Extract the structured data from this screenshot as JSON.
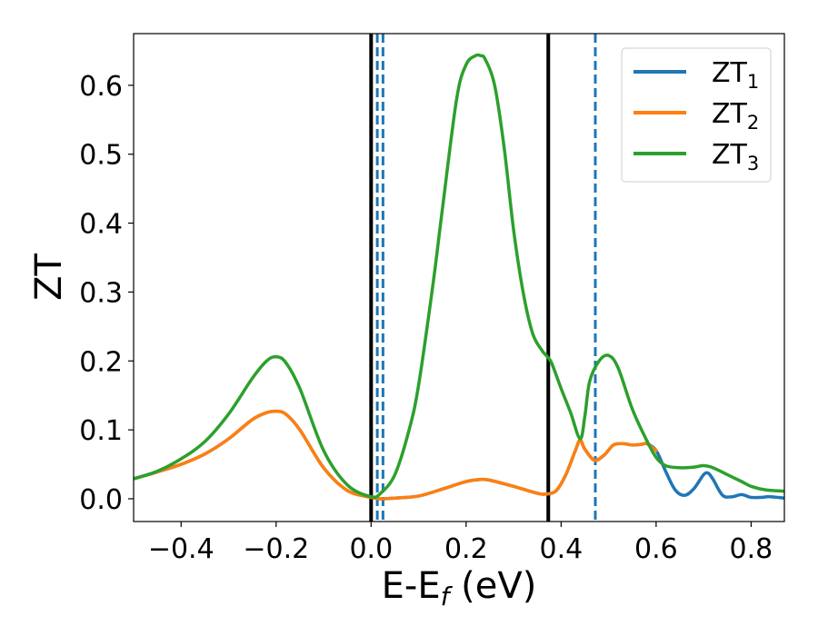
{
  "chart_data": {
    "type": "line",
    "xlabel_main": "E-E",
    "xlabel_sub": "f",
    "xlabel_tail": " (eV)",
    "ylabel": "ZT",
    "xlim": [
      -0.5,
      0.87
    ],
    "ylim": [
      -0.033,
      0.675
    ],
    "x_ticks": [
      -0.4,
      -0.2,
      0.0,
      0.2,
      0.4,
      0.6,
      0.8
    ],
    "x_tick_labels": [
      "−0.4",
      "−0.2",
      "0.0",
      "0.2",
      "0.4",
      "0.6",
      "0.8"
    ],
    "y_ticks": [
      0.0,
      0.1,
      0.2,
      0.3,
      0.4,
      0.5,
      0.6
    ],
    "y_tick_labels": [
      "0.0",
      "0.1",
      "0.2",
      "0.3",
      "0.4",
      "0.5",
      "0.6"
    ],
    "grid": false,
    "legend_position": "top-right",
    "vlines": [
      {
        "x": 0.0,
        "style": "solid",
        "color": "#000000"
      },
      {
        "x": 0.373,
        "style": "solid",
        "color": "#000000"
      },
      {
        "x": 0.013,
        "style": "dashed",
        "color": "#1f77b4"
      },
      {
        "x": 0.025,
        "style": "dashed",
        "color": "#1f77b4"
      },
      {
        "x": 0.472,
        "style": "dashed",
        "color": "#1f77b4"
      }
    ],
    "series": [
      {
        "name_main": "ZT",
        "name_sub": "1",
        "color": "#1f77b4",
        "x": [
          -0.5,
          -0.45,
          -0.4,
          -0.35,
          -0.3,
          -0.25,
          -0.22,
          -0.2,
          -0.18,
          -0.15,
          -0.1,
          -0.05,
          0.0,
          0.02,
          0.05,
          0.1,
          0.15,
          0.2,
          0.23,
          0.25,
          0.3,
          0.35,
          0.37,
          0.39,
          0.41,
          0.43,
          0.44,
          0.45,
          0.47,
          0.49,
          0.51,
          0.53,
          0.55,
          0.57,
          0.58,
          0.6,
          0.62,
          0.64,
          0.66,
          0.68,
          0.7,
          0.71,
          0.72,
          0.74,
          0.76,
          0.78,
          0.8,
          0.82,
          0.84,
          0.87
        ],
        "y": [
          0.029,
          0.039,
          0.05,
          0.065,
          0.087,
          0.115,
          0.125,
          0.127,
          0.123,
          0.1,
          0.045,
          0.012,
          0.002,
          0.0,
          0.001,
          0.004,
          0.014,
          0.025,
          0.028,
          0.027,
          0.018,
          0.008,
          0.007,
          0.012,
          0.035,
          0.07,
          0.085,
          0.072,
          0.056,
          0.063,
          0.078,
          0.08,
          0.078,
          0.079,
          0.08,
          0.07,
          0.04,
          0.013,
          0.005,
          0.015,
          0.035,
          0.037,
          0.028,
          0.005,
          0.003,
          0.006,
          0.002,
          0.002,
          0.003,
          0.001
        ]
      },
      {
        "name_main": "ZT",
        "name_sub": "2",
        "color": "#ff7f0e",
        "x": [
          -0.5,
          -0.45,
          -0.4,
          -0.35,
          -0.3,
          -0.25,
          -0.22,
          -0.2,
          -0.18,
          -0.15,
          -0.1,
          -0.05,
          0.0,
          0.02,
          0.05,
          0.1,
          0.15,
          0.2,
          0.23,
          0.25,
          0.3,
          0.35,
          0.37,
          0.39,
          0.41,
          0.43,
          0.44,
          0.45,
          0.47,
          0.49,
          0.51,
          0.53,
          0.55,
          0.57,
          0.58,
          0.6
        ],
        "y": [
          0.029,
          0.039,
          0.05,
          0.065,
          0.087,
          0.115,
          0.125,
          0.127,
          0.123,
          0.1,
          0.045,
          0.012,
          0.002,
          0.0,
          0.001,
          0.004,
          0.014,
          0.025,
          0.028,
          0.027,
          0.018,
          0.008,
          0.007,
          0.012,
          0.035,
          0.07,
          0.085,
          0.072,
          0.056,
          0.063,
          0.078,
          0.08,
          0.078,
          0.079,
          0.08,
          0.07
        ]
      },
      {
        "name_main": "ZT",
        "name_sub": "3",
        "color": "#2ca02c",
        "x": [
          -0.5,
          -0.45,
          -0.4,
          -0.35,
          -0.3,
          -0.25,
          -0.22,
          -0.2,
          -0.18,
          -0.15,
          -0.1,
          -0.05,
          0.0,
          0.02,
          0.05,
          0.08,
          0.1,
          0.13,
          0.15,
          0.18,
          0.2,
          0.22,
          0.23,
          0.24,
          0.26,
          0.28,
          0.3,
          0.32,
          0.34,
          0.36,
          0.37,
          0.38,
          0.4,
          0.42,
          0.44,
          0.45,
          0.46,
          0.48,
          0.5,
          0.52,
          0.55,
          0.58,
          0.6,
          0.62,
          0.65,
          0.68,
          0.7,
          0.72,
          0.75,
          0.78,
          0.8,
          0.83,
          0.87
        ],
        "y": [
          0.029,
          0.04,
          0.058,
          0.083,
          0.123,
          0.175,
          0.2,
          0.206,
          0.198,
          0.16,
          0.07,
          0.02,
          0.003,
          0.008,
          0.035,
          0.1,
          0.165,
          0.31,
          0.42,
          0.58,
          0.63,
          0.643,
          0.643,
          0.638,
          0.6,
          0.51,
          0.39,
          0.3,
          0.24,
          0.215,
          0.207,
          0.197,
          0.16,
          0.125,
          0.087,
          0.12,
          0.17,
          0.2,
          0.208,
          0.19,
          0.13,
          0.085,
          0.06,
          0.048,
          0.045,
          0.046,
          0.048,
          0.045,
          0.035,
          0.025,
          0.018,
          0.013,
          0.011
        ]
      }
    ]
  }
}
